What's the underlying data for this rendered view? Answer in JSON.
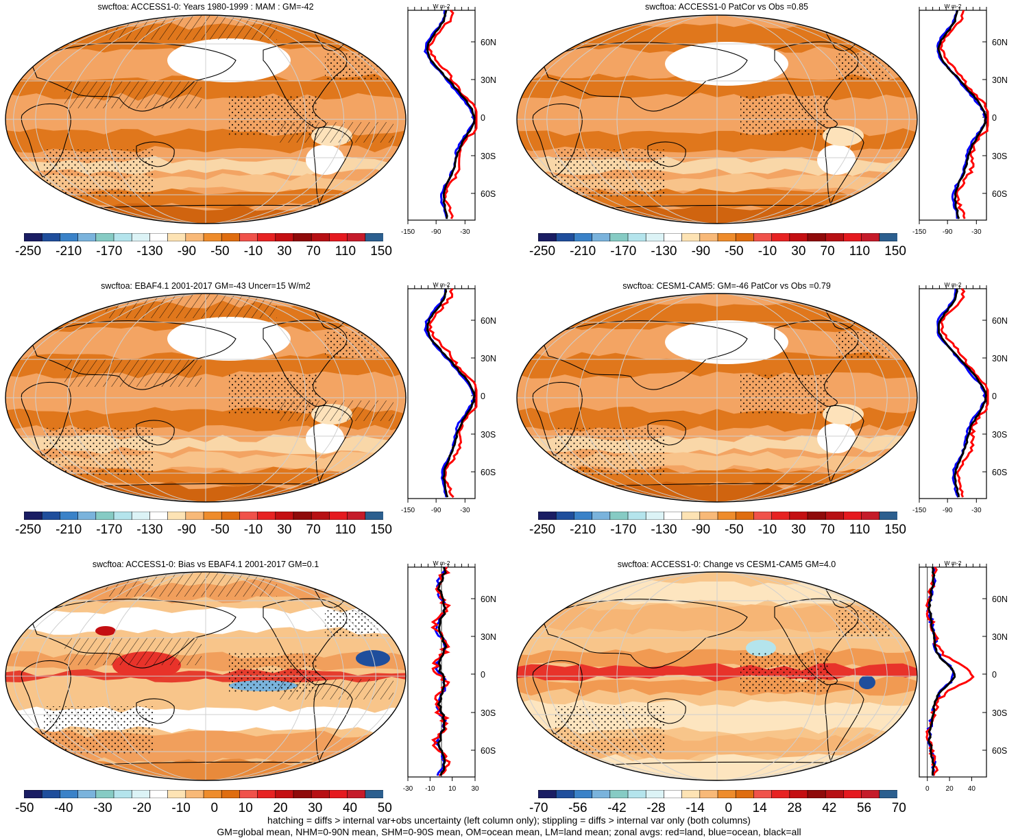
{
  "panels": [
    {
      "title": "swcftoa: ACCESS1-0: Years 1980-1999 : MAM : GM=-42",
      "profile": {
        "unit_label": "W m-2",
        "x_ticks": [
          "-150",
          "-90",
          "-30"
        ],
        "lat_ticks": [
          "60N",
          "30N",
          "0",
          "30S",
          "60S"
        ]
      },
      "colorbar": {
        "labels": [
          "-250",
          "-210",
          "-170",
          "-130",
          "-90",
          "-50",
          "-10",
          "30",
          "70",
          "110",
          "150"
        ]
      },
      "overlays": {
        "hatching": true,
        "stippling": true
      }
    },
    {
      "title": "swcftoa: ACCESS1-0 PatCor vs Obs =0.85",
      "profile": {
        "unit_label": "W m-2",
        "x_ticks": [
          "-150",
          "-90",
          "-30"
        ],
        "lat_ticks": [
          "60N",
          "30N",
          "0",
          "30S",
          "60S"
        ]
      },
      "colorbar": {
        "labels": [
          "-250",
          "-210",
          "-170",
          "-130",
          "-90",
          "-50",
          "-10",
          "30",
          "70",
          "110",
          "150"
        ]
      },
      "overlays": {
        "hatching": false,
        "stippling": true
      }
    },
    {
      "title": "swcftoa: EBAF4.1 2001-2017 GM=-43 Uncer=15 W/m2",
      "profile": {
        "unit_label": "W m-2",
        "x_ticks": [
          "-150",
          "-90",
          "-30"
        ],
        "lat_ticks": [
          "60N",
          "30N",
          "0",
          "30S",
          "60S"
        ]
      },
      "colorbar": {
        "labels": [
          "-250",
          "-210",
          "-170",
          "-130",
          "-90",
          "-50",
          "-10",
          "30",
          "70",
          "110",
          "150"
        ]
      },
      "overlays": {
        "hatching": true,
        "stippling": true
      }
    },
    {
      "title": "swcftoa: CESM1-CAM5: GM=-46 PatCor vs Obs =0.79",
      "profile": {
        "unit_label": "W m-2",
        "x_ticks": [
          "-150",
          "-90",
          "-30"
        ],
        "lat_ticks": [
          "60N",
          "30N",
          "0",
          "30S",
          "60S"
        ]
      },
      "colorbar": {
        "labels": [
          "-250",
          "-210",
          "-170",
          "-130",
          "-90",
          "-50",
          "-10",
          "30",
          "70",
          "110",
          "150"
        ]
      },
      "overlays": {
        "hatching": false,
        "stippling": true
      }
    },
    {
      "title": "swcftoa: ACCESS1-0: Bias vs EBAF4.1 2001-2017 GM=0.1",
      "profile": {
        "unit_label": "W m-2",
        "x_ticks": [
          "-30",
          "-10",
          "10",
          "30"
        ],
        "lat_ticks": [
          "60N",
          "30N",
          "0",
          "30S",
          "60S"
        ]
      },
      "colorbar": {
        "labels": [
          "-50",
          "-40",
          "-30",
          "-20",
          "-10",
          "0",
          "10",
          "20",
          "30",
          "40",
          "50"
        ]
      },
      "overlays": {
        "hatching": true,
        "stippling": true
      }
    },
    {
      "title": "swcftoa: ACCESS1-0: Change vs CESM1-CAM5 GM=4.0",
      "profile": {
        "unit_label": "W m-2",
        "x_ticks": [
          "0",
          "20",
          "40"
        ],
        "lat_ticks": [
          "60N",
          "30N",
          "0",
          "30S",
          "60S"
        ]
      },
      "colorbar": {
        "labels": [
          "-70",
          "-56",
          "-42",
          "-28",
          "-14",
          "0",
          "14",
          "28",
          "42",
          "56",
          "70"
        ]
      },
      "overlays": {
        "hatching": false,
        "stippling": true
      }
    }
  ],
  "colorbar_colors": [
    "#1a1d63",
    "#1f4e9c",
    "#3a82c8",
    "#7ab3dc",
    "#86cbc4",
    "#b4e4ec",
    "#dcf3f6",
    "#ffffff",
    "#fde3b4",
    "#f8b978",
    "#ee8c2c",
    "#df6d10",
    "#f0524a",
    "#e72222",
    "#c40f12",
    "#8f0a0a",
    "#b71014",
    "#e5191f",
    "#c51b2a",
    "#2c5f8f"
  ],
  "profile_series_colors": {
    "land": "#ff0000",
    "ocean": "#0000ff",
    "all": "#000000"
  },
  "footnote": {
    "line1": "hatching = diffs > internal var+obs uncertainty (left column only); stippling = diffs > internal var only (both columns)",
    "line2": "GM=global mean, NHM=0-90N mean, SHM=0-90S mean, OM=ocean mean, LM=land mean; zonal avgs: red=land, blue=ocean, black=all"
  }
}
